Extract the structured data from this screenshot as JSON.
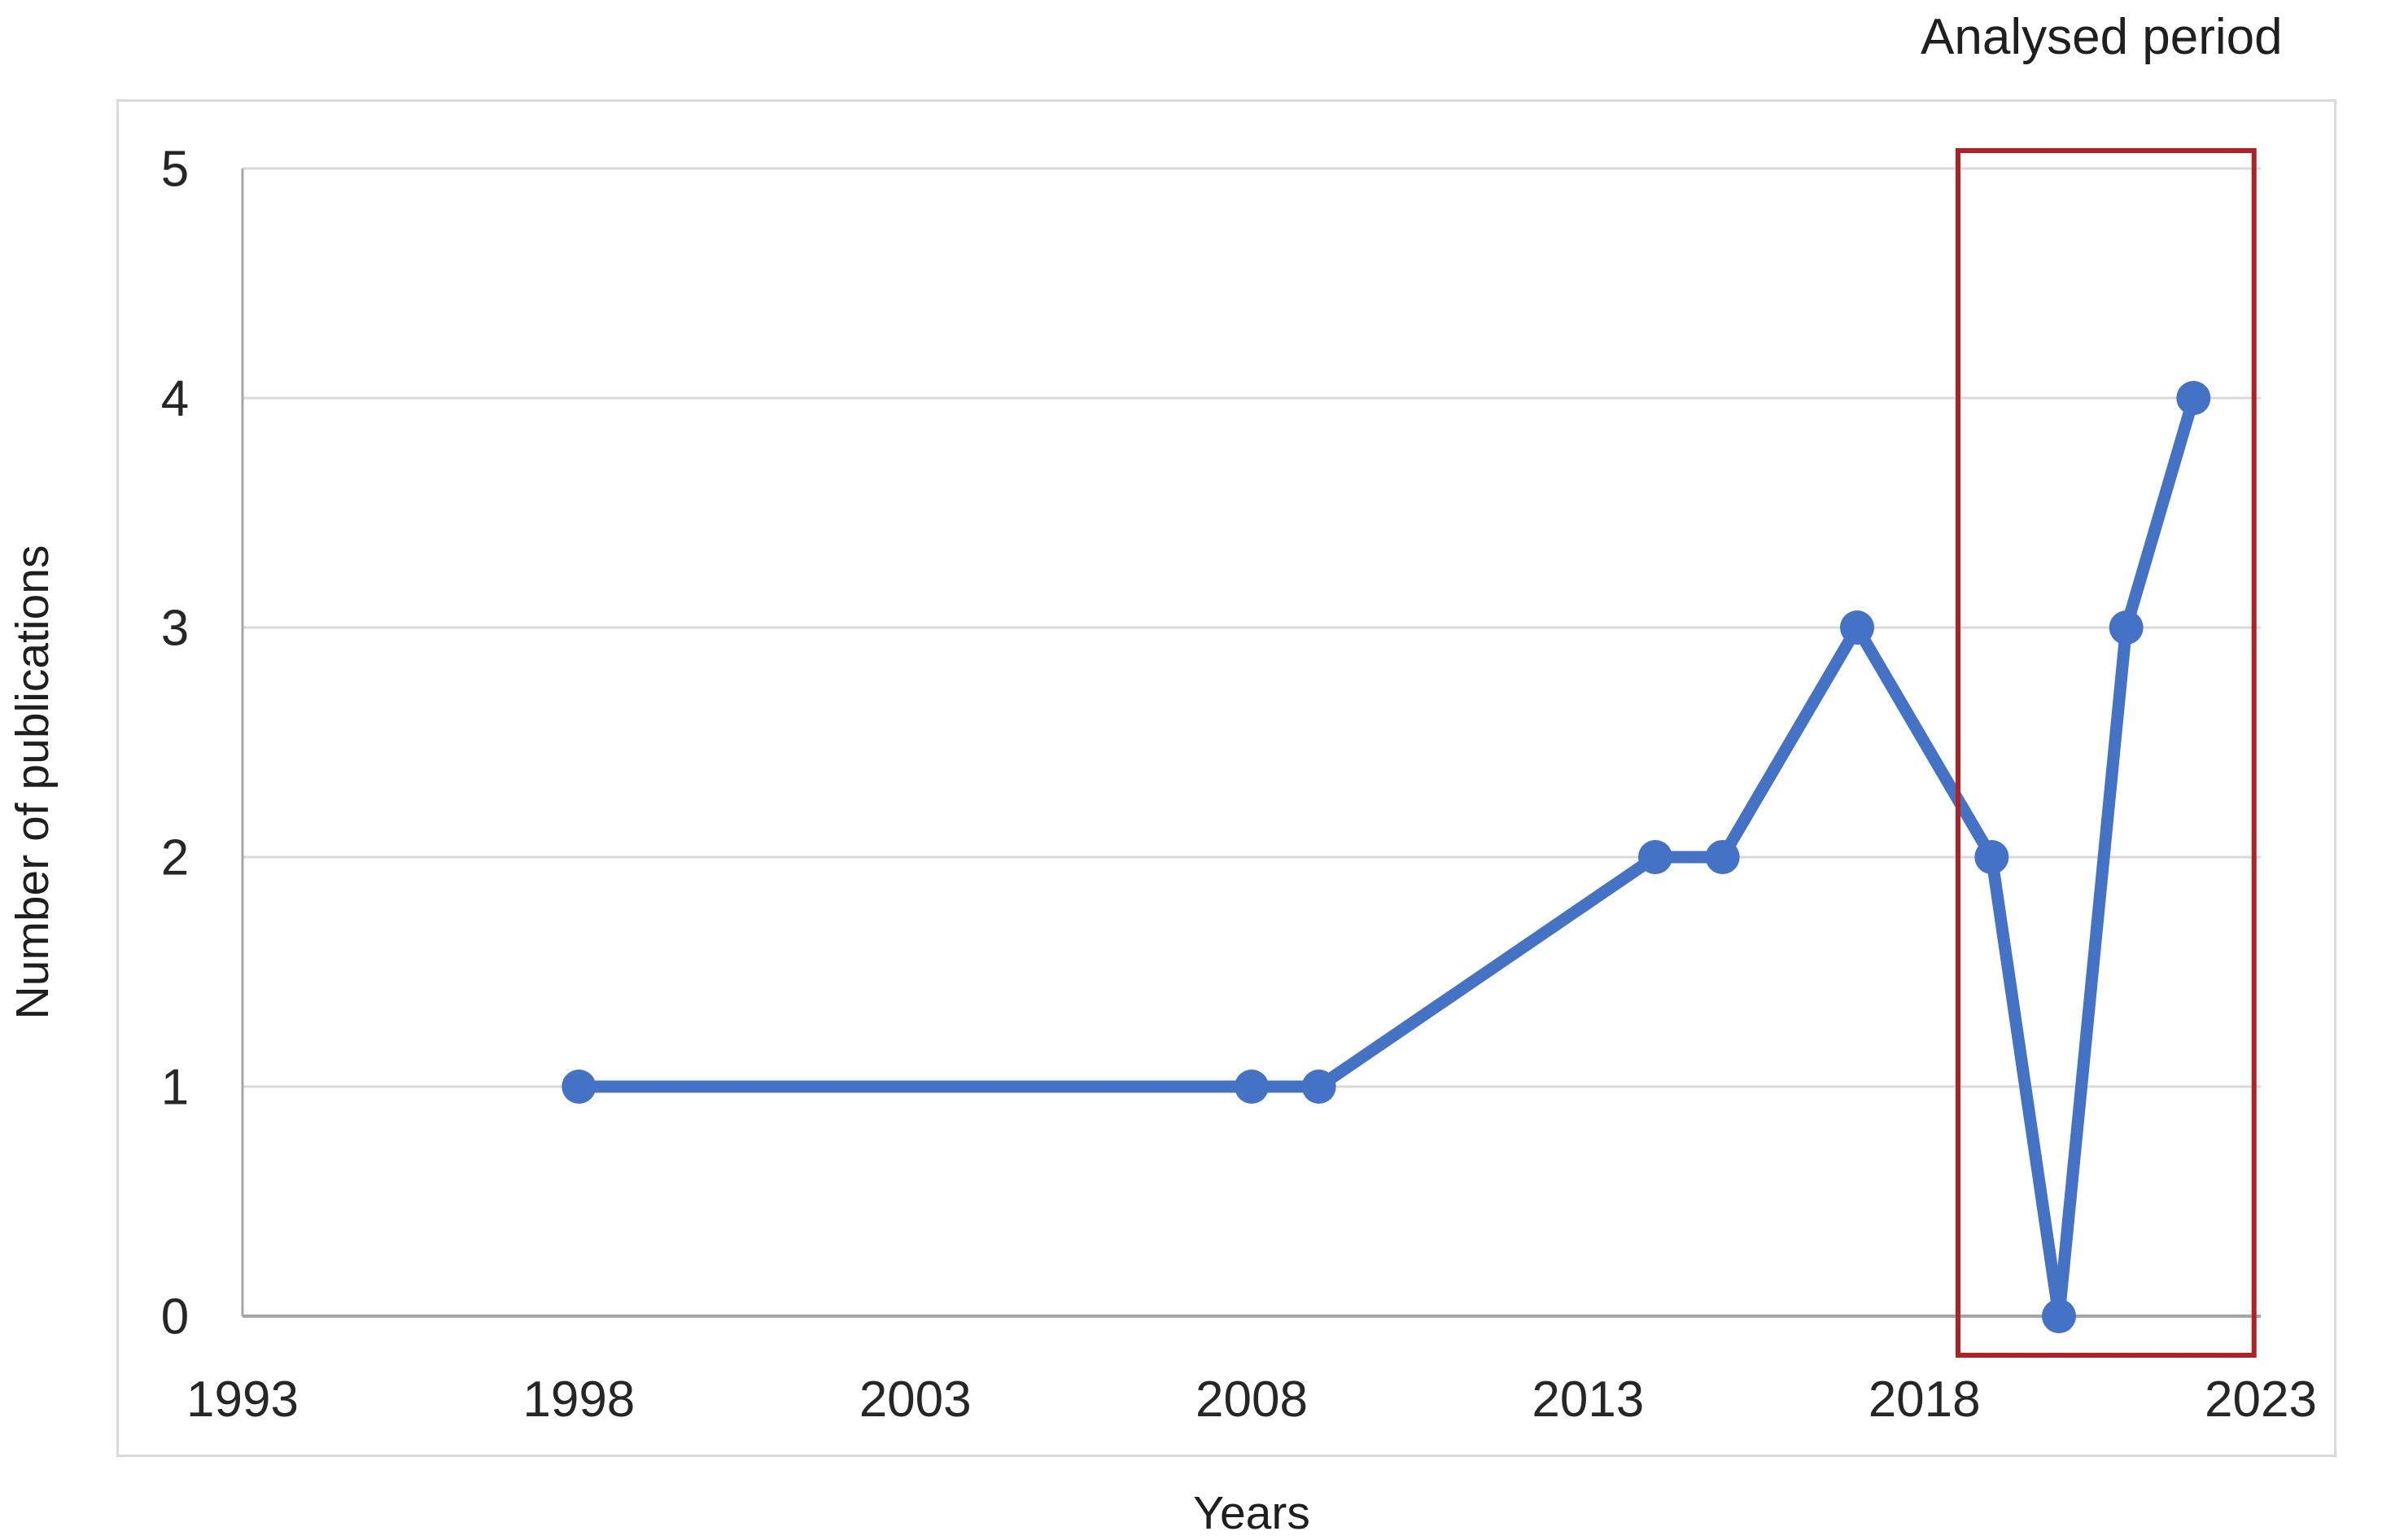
{
  "page": {
    "background": "#ffffff"
  },
  "chart_data": {
    "type": "line",
    "title": "",
    "xlabel": "Years",
    "ylabel": "Number of publications",
    "xlim": [
      1993,
      2023
    ],
    "ylim": [
      0,
      5
    ],
    "x_ticks": [
      1993,
      1998,
      2003,
      2008,
      2013,
      2018,
      2023
    ],
    "y_ticks": [
      0,
      1,
      2,
      3,
      4,
      5
    ],
    "grid": "horizontal",
    "legend": "none",
    "series": [
      {
        "name": "Number of publications",
        "points": [
          {
            "year": 1998,
            "value": 1
          },
          {
            "year": 2008,
            "value": 1
          },
          {
            "year": 2009,
            "value": 1
          },
          {
            "year": 2014,
            "value": 2
          },
          {
            "year": 2015,
            "value": 2
          },
          {
            "year": 2017,
            "value": 3
          },
          {
            "year": 2019,
            "value": 2
          },
          {
            "year": 2020,
            "value": 0
          },
          {
            "year": 2021,
            "value": 3
          },
          {
            "year": 2022,
            "value": 4
          }
        ]
      }
    ],
    "annotation": {
      "label": "Analysed period",
      "from_year": 2018.5,
      "to_year": 2022.9
    }
  },
  "colors": {
    "line": "#4472C4",
    "marker": "#4472C4",
    "annotation_box": "#B02025",
    "gridline": "#D9D9D9",
    "axis_line": "#A6A6A6",
    "frame_border": "#D9D9D9",
    "text": "#262626"
  }
}
